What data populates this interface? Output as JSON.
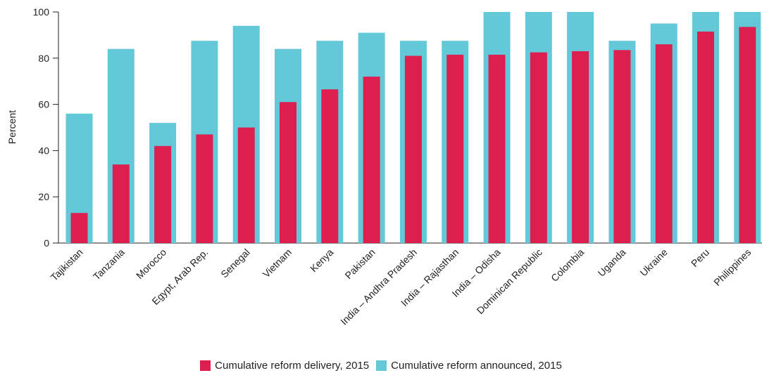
{
  "chart_data": {
    "type": "bar",
    "ylabel": "Percent",
    "ylim": [
      0,
      100
    ],
    "yticks": [
      0,
      20,
      40,
      60,
      80,
      100
    ],
    "categories": [
      "Tajikistan",
      "Tanzania",
      "Morocco",
      "Egypt, Arab Rep.",
      "Senegal",
      "Vietnam",
      "Kenya",
      "Pakistan",
      "India – Andhra Pradesh",
      "India – Rajasthan",
      "India – Odisha",
      "Dominican Republic",
      "Colombia",
      "Uganda",
      "Ukraine",
      "Peru",
      "Philippines"
    ],
    "series": [
      {
        "name": "Cumulative reform announced, 2015",
        "color": "#63c9d9",
        "values": [
          56,
          84,
          52,
          87.5,
          94,
          84,
          87.5,
          91,
          87.5,
          87.5,
          100,
          100,
          100,
          87.5,
          95,
          100,
          100
        ]
      },
      {
        "name": "Cumulative reform delivery, 2015",
        "color": "#dd1f4f",
        "values": [
          13,
          34,
          42,
          47,
          50,
          61,
          66.5,
          72,
          81,
          81.5,
          81.5,
          82.5,
          83,
          83.5,
          86,
          91.5,
          93.5
        ]
      }
    ],
    "grid": false,
    "legend_position": "bottom-center"
  },
  "legend": {
    "items": [
      {
        "label": "Cumulative reform delivery, 2015",
        "color": "#dd1f4f"
      },
      {
        "label": "Cumulative reform announced, 2015",
        "color": "#63c9d9"
      }
    ]
  }
}
